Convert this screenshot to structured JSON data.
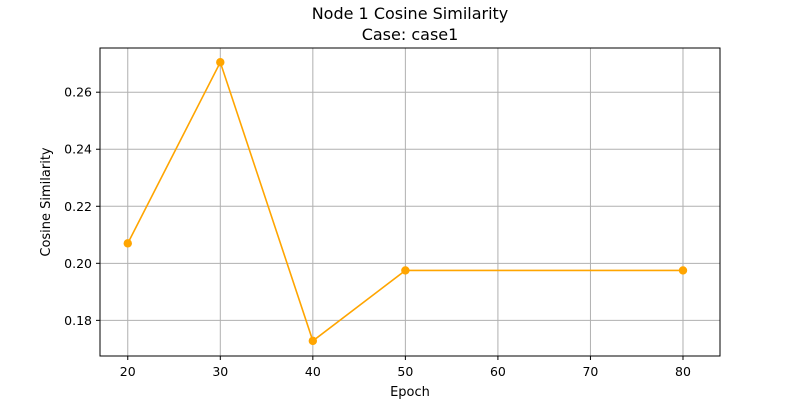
{
  "chart_data": {
    "type": "line",
    "title": "Node 1 Cosine Similarity",
    "subtitle": "Case: case1",
    "xlabel": "Epoch",
    "ylabel": "Cosine Similarity",
    "xlim": [
      17,
      84
    ],
    "ylim": [
      0.1675,
      0.2755
    ],
    "xticks": [
      20,
      30,
      40,
      50,
      60,
      70,
      80
    ],
    "yticks": [
      0.18,
      0.2,
      0.22,
      0.24,
      0.26
    ],
    "ytick_labels": [
      "0.18",
      "0.20",
      "0.22",
      "0.24",
      "0.26"
    ],
    "grid": true,
    "series": [
      {
        "color": "#FFA500",
        "marker": "circle",
        "x": [
          20,
          30,
          40,
          50,
          80
        ],
        "y": [
          0.207,
          0.2705,
          0.1728,
          0.1975,
          0.1975
        ]
      }
    ]
  }
}
